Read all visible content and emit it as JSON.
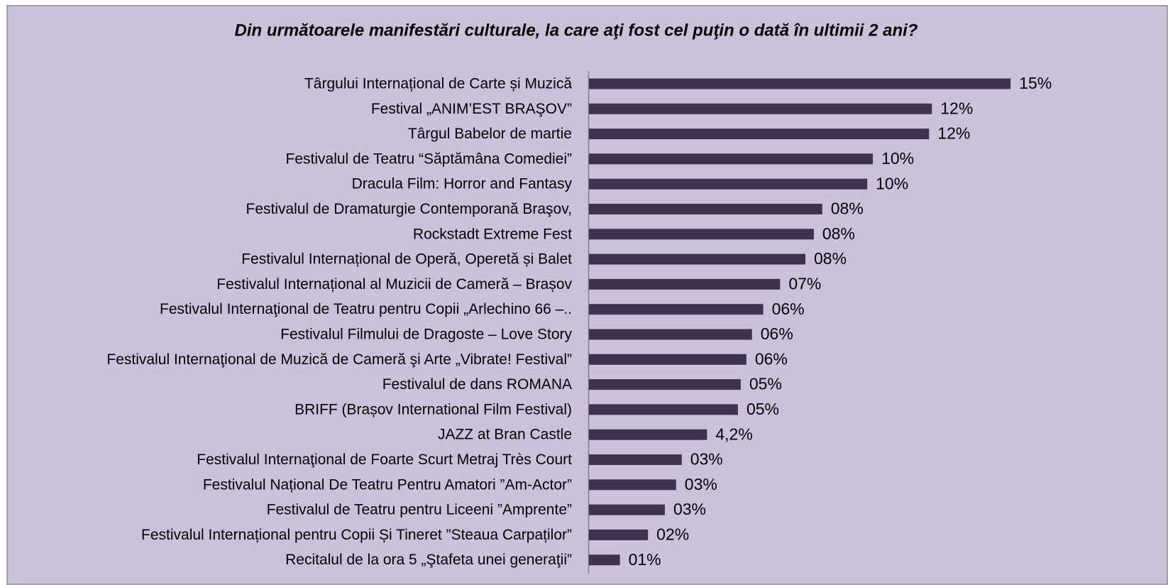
{
  "chart_data": {
    "type": "barh",
    "title": "Din următoarele manifestări culturale, la care aţi fost cel puţin o dată în ultimii 2 ani?",
    "categories": [
      "Târgului Internațional de Carte și Muzică",
      "Festival „ANIM’EST BRAŞOV”",
      "Târgul Babelor de martie",
      "Festivalul de Teatru “Săptămâna Comediei”",
      "Dracula Film: Horror and Fantasy",
      "Festivalul de Dramaturgie Contemporană Braşov,",
      "Rockstadt Extreme Fest",
      "Festivalul Internațional de Operă, Operetă și Balet",
      "Festivalul Internațional al Muzicii de Cameră – Brașov",
      "Festivalul Internaţional de Teatru pentru Copii „Arlechino 66 –..",
      "Festivalul Filmului de Dragoste – Love Story",
      "Festivalul Internaţional de Muzică de Cameră şi Arte „Vibrate! Festival”",
      "Festivalul de dans ROMANA",
      "BRIFF (Brașov International Film Festival)",
      "JAZZ at Bran Castle",
      "Festivalul Internaţional de Foarte Scurt Metraj Très Court",
      "Festivalul Național De Teatru Pentru Amatori ”Am-Actor”",
      "Festivalul de Teatru pentru Liceeni ”Amprente”",
      "Festivalul Internațional pentru Copii Și Tineret ”Steaua Carpaților”",
      "Recitalul de la ora 5 „Ştafeta unei generaţii”"
    ],
    "values": [
      15.0,
      12.2,
      12.1,
      10.1,
      9.9,
      8.3,
      8.0,
      7.7,
      6.8,
      6.2,
      5.8,
      5.6,
      5.4,
      5.3,
      4.2,
      3.3,
      3.1,
      2.7,
      2.1,
      1.1
    ],
    "value_labels": [
      "15%",
      "12%",
      "12%",
      "10%",
      "10%",
      "08%",
      "08%",
      "08%",
      "07%",
      "06%",
      "06%",
      "06%",
      "05%",
      "05%",
      "4,2%",
      "03%",
      "03%",
      "03%",
      "02%",
      "01%"
    ],
    "color": "#3f3151",
    "xlim": [
      0,
      18
    ]
  }
}
